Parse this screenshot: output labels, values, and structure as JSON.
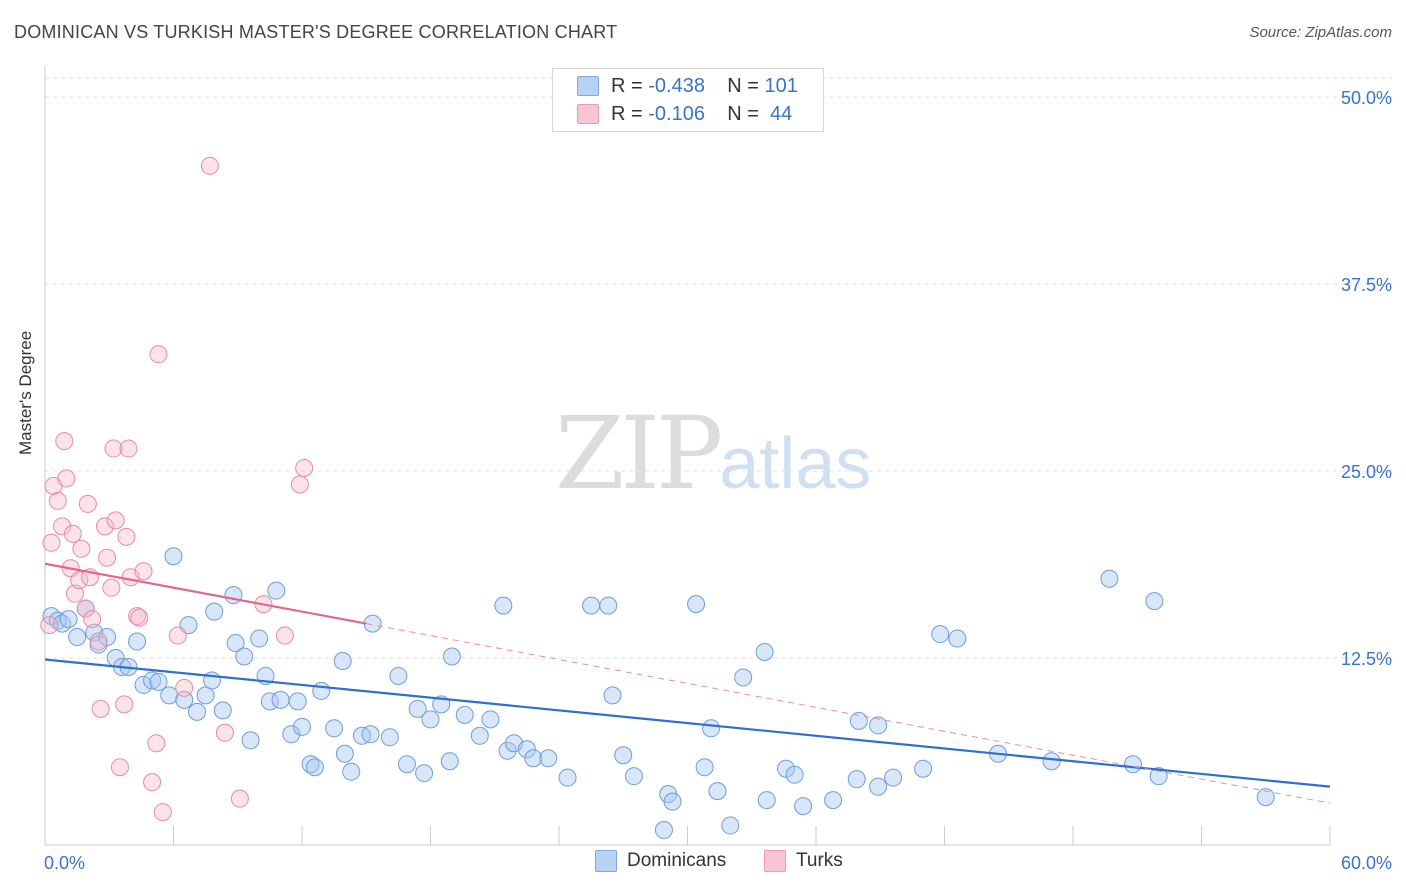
{
  "title": "DOMINICAN VS TURKISH MASTER'S DEGREE CORRELATION CHART",
  "source": "Source: ZipAtlas.com",
  "watermark": {
    "zip": "ZIP",
    "atlas": "atlas"
  },
  "legend": {
    "rows": [
      {
        "r_label": "R =",
        "r_value": "-0.438",
        "n_label": "N =",
        "n_value": "101",
        "color": "#a8c8f0"
      },
      {
        "r_label": "R =",
        "r_value": "-0.106",
        "n_label": "N =",
        "n_value": "44",
        "color": "#f5b8c8"
      }
    ]
  },
  "bottom_legend": [
    {
      "label": "Dominicans",
      "color": "#a8c8f0"
    },
    {
      "label": "Turks",
      "color": "#f5b8c8"
    }
  ],
  "chart_data": {
    "type": "scatter",
    "title": "DOMINICAN VS TURKISH MASTER'S DEGREE CORRELATION CHART",
    "xlabel": "",
    "ylabel": "Master's Degree",
    "xlim": [
      0,
      60
    ],
    "ylim": [
      0,
      50
    ],
    "x_tick_labels": [
      "0.0%",
      "60.0%"
    ],
    "y_ticks": [
      12.5,
      25.0,
      37.5,
      50.0
    ],
    "y_tick_labels": [
      "12.5%",
      "25.0%",
      "37.5%",
      "50.0%"
    ],
    "series": [
      {
        "name": "Dominicans",
        "color": "#6a9fdc",
        "fill": "rgba(168,200,240,0.45)",
        "trend": {
          "x": [
            0,
            60
          ],
          "y": [
            12.4,
            3.9
          ]
        },
        "points": [
          [
            0.3,
            15.3
          ],
          [
            0.6,
            15.0
          ],
          [
            0.8,
            14.8
          ],
          [
            1.1,
            15.1
          ],
          [
            1.5,
            13.9
          ],
          [
            1.9,
            15.8
          ],
          [
            2.3,
            14.2
          ],
          [
            2.5,
            13.4
          ],
          [
            2.9,
            13.9
          ],
          [
            3.3,
            12.5
          ],
          [
            3.6,
            11.9
          ],
          [
            3.9,
            11.9
          ],
          [
            4.3,
            13.6
          ],
          [
            4.6,
            10.7
          ],
          [
            5.0,
            11.0
          ],
          [
            5.3,
            10.9
          ],
          [
            5.8,
            10.0
          ],
          [
            6.0,
            19.3
          ],
          [
            6.5,
            9.7
          ],
          [
            6.7,
            14.7
          ],
          [
            7.1,
            8.9
          ],
          [
            7.5,
            10.0
          ],
          [
            7.8,
            11.0
          ],
          [
            7.9,
            15.6
          ],
          [
            8.3,
            9.0
          ],
          [
            8.8,
            16.7
          ],
          [
            8.9,
            13.5
          ],
          [
            9.3,
            12.6
          ],
          [
            9.6,
            7.0
          ],
          [
            10.0,
            13.8
          ],
          [
            10.3,
            11.3
          ],
          [
            10.5,
            9.6
          ],
          [
            10.8,
            17.0
          ],
          [
            11.0,
            9.7
          ],
          [
            11.5,
            7.4
          ],
          [
            11.8,
            9.6
          ],
          [
            12.0,
            7.9
          ],
          [
            12.4,
            5.4
          ],
          [
            12.6,
            5.2
          ],
          [
            12.9,
            10.3
          ],
          [
            13.5,
            7.8
          ],
          [
            13.9,
            12.3
          ],
          [
            14.0,
            6.1
          ],
          [
            14.3,
            4.9
          ],
          [
            14.8,
            7.3
          ],
          [
            15.2,
            7.4
          ],
          [
            15.3,
            14.8
          ],
          [
            16.1,
            7.2
          ],
          [
            16.5,
            11.3
          ],
          [
            16.9,
            5.4
          ],
          [
            17.4,
            9.1
          ],
          [
            17.7,
            4.8
          ],
          [
            18.0,
            8.4
          ],
          [
            18.5,
            9.4
          ],
          [
            18.9,
            5.6
          ],
          [
            19.0,
            12.6
          ],
          [
            19.6,
            8.7
          ],
          [
            20.3,
            7.3
          ],
          [
            20.8,
            8.4
          ],
          [
            21.4,
            16.0
          ],
          [
            21.6,
            6.3
          ],
          [
            21.9,
            6.8
          ],
          [
            22.5,
            6.4
          ],
          [
            22.8,
            5.8
          ],
          [
            23.5,
            5.8
          ],
          [
            24.4,
            4.5
          ],
          [
            25.5,
            16.0
          ],
          [
            26.3,
            16.0
          ],
          [
            26.5,
            10.0
          ],
          [
            27.0,
            6.0
          ],
          [
            27.5,
            4.6
          ],
          [
            28.9,
            1.0
          ],
          [
            29.1,
            3.4
          ],
          [
            29.3,
            2.9
          ],
          [
            30.4,
            16.1
          ],
          [
            30.8,
            5.2
          ],
          [
            31.1,
            7.8
          ],
          [
            31.4,
            3.6
          ],
          [
            32.0,
            1.3
          ],
          [
            32.6,
            11.2
          ],
          [
            33.6,
            12.9
          ],
          [
            33.7,
            3.0
          ],
          [
            34.6,
            5.1
          ],
          [
            35.0,
            4.7
          ],
          [
            35.4,
            2.6
          ],
          [
            36.8,
            3.0
          ],
          [
            37.9,
            4.4
          ],
          [
            38.0,
            8.3
          ],
          [
            38.9,
            8.0
          ],
          [
            38.9,
            3.9
          ],
          [
            39.6,
            4.5
          ],
          [
            41.0,
            5.1
          ],
          [
            41.8,
            14.1
          ],
          [
            42.6,
            13.8
          ],
          [
            44.5,
            6.1
          ],
          [
            47.0,
            5.6
          ],
          [
            49.7,
            17.8
          ],
          [
            50.8,
            5.4
          ],
          [
            51.8,
            16.3
          ],
          [
            52.0,
            4.6
          ],
          [
            57.0,
            3.2
          ]
        ]
      },
      {
        "name": "Turks",
        "color": "#e98aa6",
        "fill": "rgba(245,184,200,0.40)",
        "trend": {
          "x": [
            0,
            15
          ],
          "y": [
            18.8,
            14.8
          ]
        },
        "trend_dashed": {
          "x": [
            15,
            60
          ],
          "y": [
            14.8,
            2.8
          ]
        },
        "points": [
          [
            0.2,
            14.7
          ],
          [
            0.3,
            20.2
          ],
          [
            0.4,
            24.0
          ],
          [
            0.6,
            23.0
          ],
          [
            0.8,
            21.3
          ],
          [
            0.9,
            27.0
          ],
          [
            1.0,
            24.5
          ],
          [
            1.2,
            18.5
          ],
          [
            1.3,
            20.8
          ],
          [
            1.4,
            16.8
          ],
          [
            1.6,
            17.7
          ],
          [
            1.7,
            19.8
          ],
          [
            1.9,
            15.8
          ],
          [
            2.0,
            22.8
          ],
          [
            2.1,
            17.9
          ],
          [
            2.2,
            15.1
          ],
          [
            2.5,
            13.6
          ],
          [
            2.6,
            9.1
          ],
          [
            2.8,
            21.3
          ],
          [
            2.9,
            19.2
          ],
          [
            3.1,
            17.2
          ],
          [
            3.2,
            26.5
          ],
          [
            3.3,
            21.7
          ],
          [
            3.5,
            5.2
          ],
          [
            3.7,
            9.4
          ],
          [
            3.8,
            20.6
          ],
          [
            3.9,
            26.5
          ],
          [
            4.0,
            17.9
          ],
          [
            4.3,
            15.3
          ],
          [
            4.4,
            15.2
          ],
          [
            4.6,
            18.3
          ],
          [
            5.0,
            4.2
          ],
          [
            5.2,
            6.8
          ],
          [
            5.3,
            32.8
          ],
          [
            5.5,
            2.2
          ],
          [
            6.2,
            14.0
          ],
          [
            6.5,
            10.5
          ],
          [
            7.7,
            45.4
          ],
          [
            8.4,
            7.5
          ],
          [
            9.1,
            3.1
          ],
          [
            10.2,
            16.1
          ],
          [
            11.2,
            14.0
          ],
          [
            11.9,
            24.1
          ],
          [
            12.1,
            25.2
          ]
        ]
      }
    ]
  }
}
